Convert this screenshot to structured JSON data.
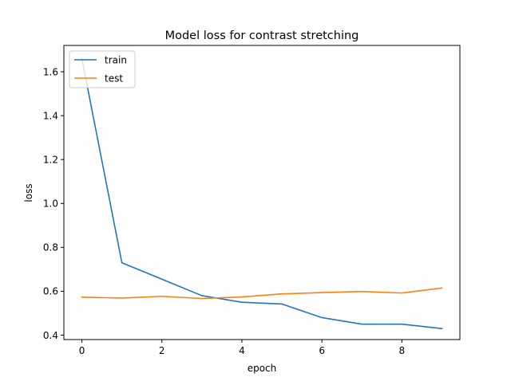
{
  "chart_data": {
    "type": "line",
    "title": "Model loss for contrast stretching",
    "xlabel": "epoch",
    "ylabel": "loss",
    "x": [
      0,
      1,
      2,
      3,
      4,
      5,
      6,
      7,
      8,
      9
    ],
    "xlim": [
      -0.45,
      9.45
    ],
    "ylim": [
      0.38,
      1.72
    ],
    "xticks": [
      0,
      2,
      4,
      6,
      8
    ],
    "xtick_labels": [
      "0",
      "2",
      "4",
      "6",
      "8"
    ],
    "yticks": [
      0.4,
      0.6,
      0.8,
      1.0,
      1.2,
      1.4,
      1.6
    ],
    "ytick_labels": [
      "0.4",
      "0.6",
      "0.8",
      "1.0",
      "1.2",
      "1.4",
      "1.6"
    ],
    "grid": false,
    "legend_position": "upper left",
    "series": [
      {
        "name": "train",
        "color": "#1f77b4",
        "values": [
          1.66,
          0.73,
          0.655,
          0.58,
          0.55,
          0.542,
          0.48,
          0.45,
          0.45,
          0.43
        ]
      },
      {
        "name": "test",
        "color": "#ff7f0e",
        "values": [
          0.573,
          0.569,
          0.577,
          0.567,
          0.574,
          0.588,
          0.594,
          0.599,
          0.592,
          0.615
        ]
      }
    ]
  }
}
